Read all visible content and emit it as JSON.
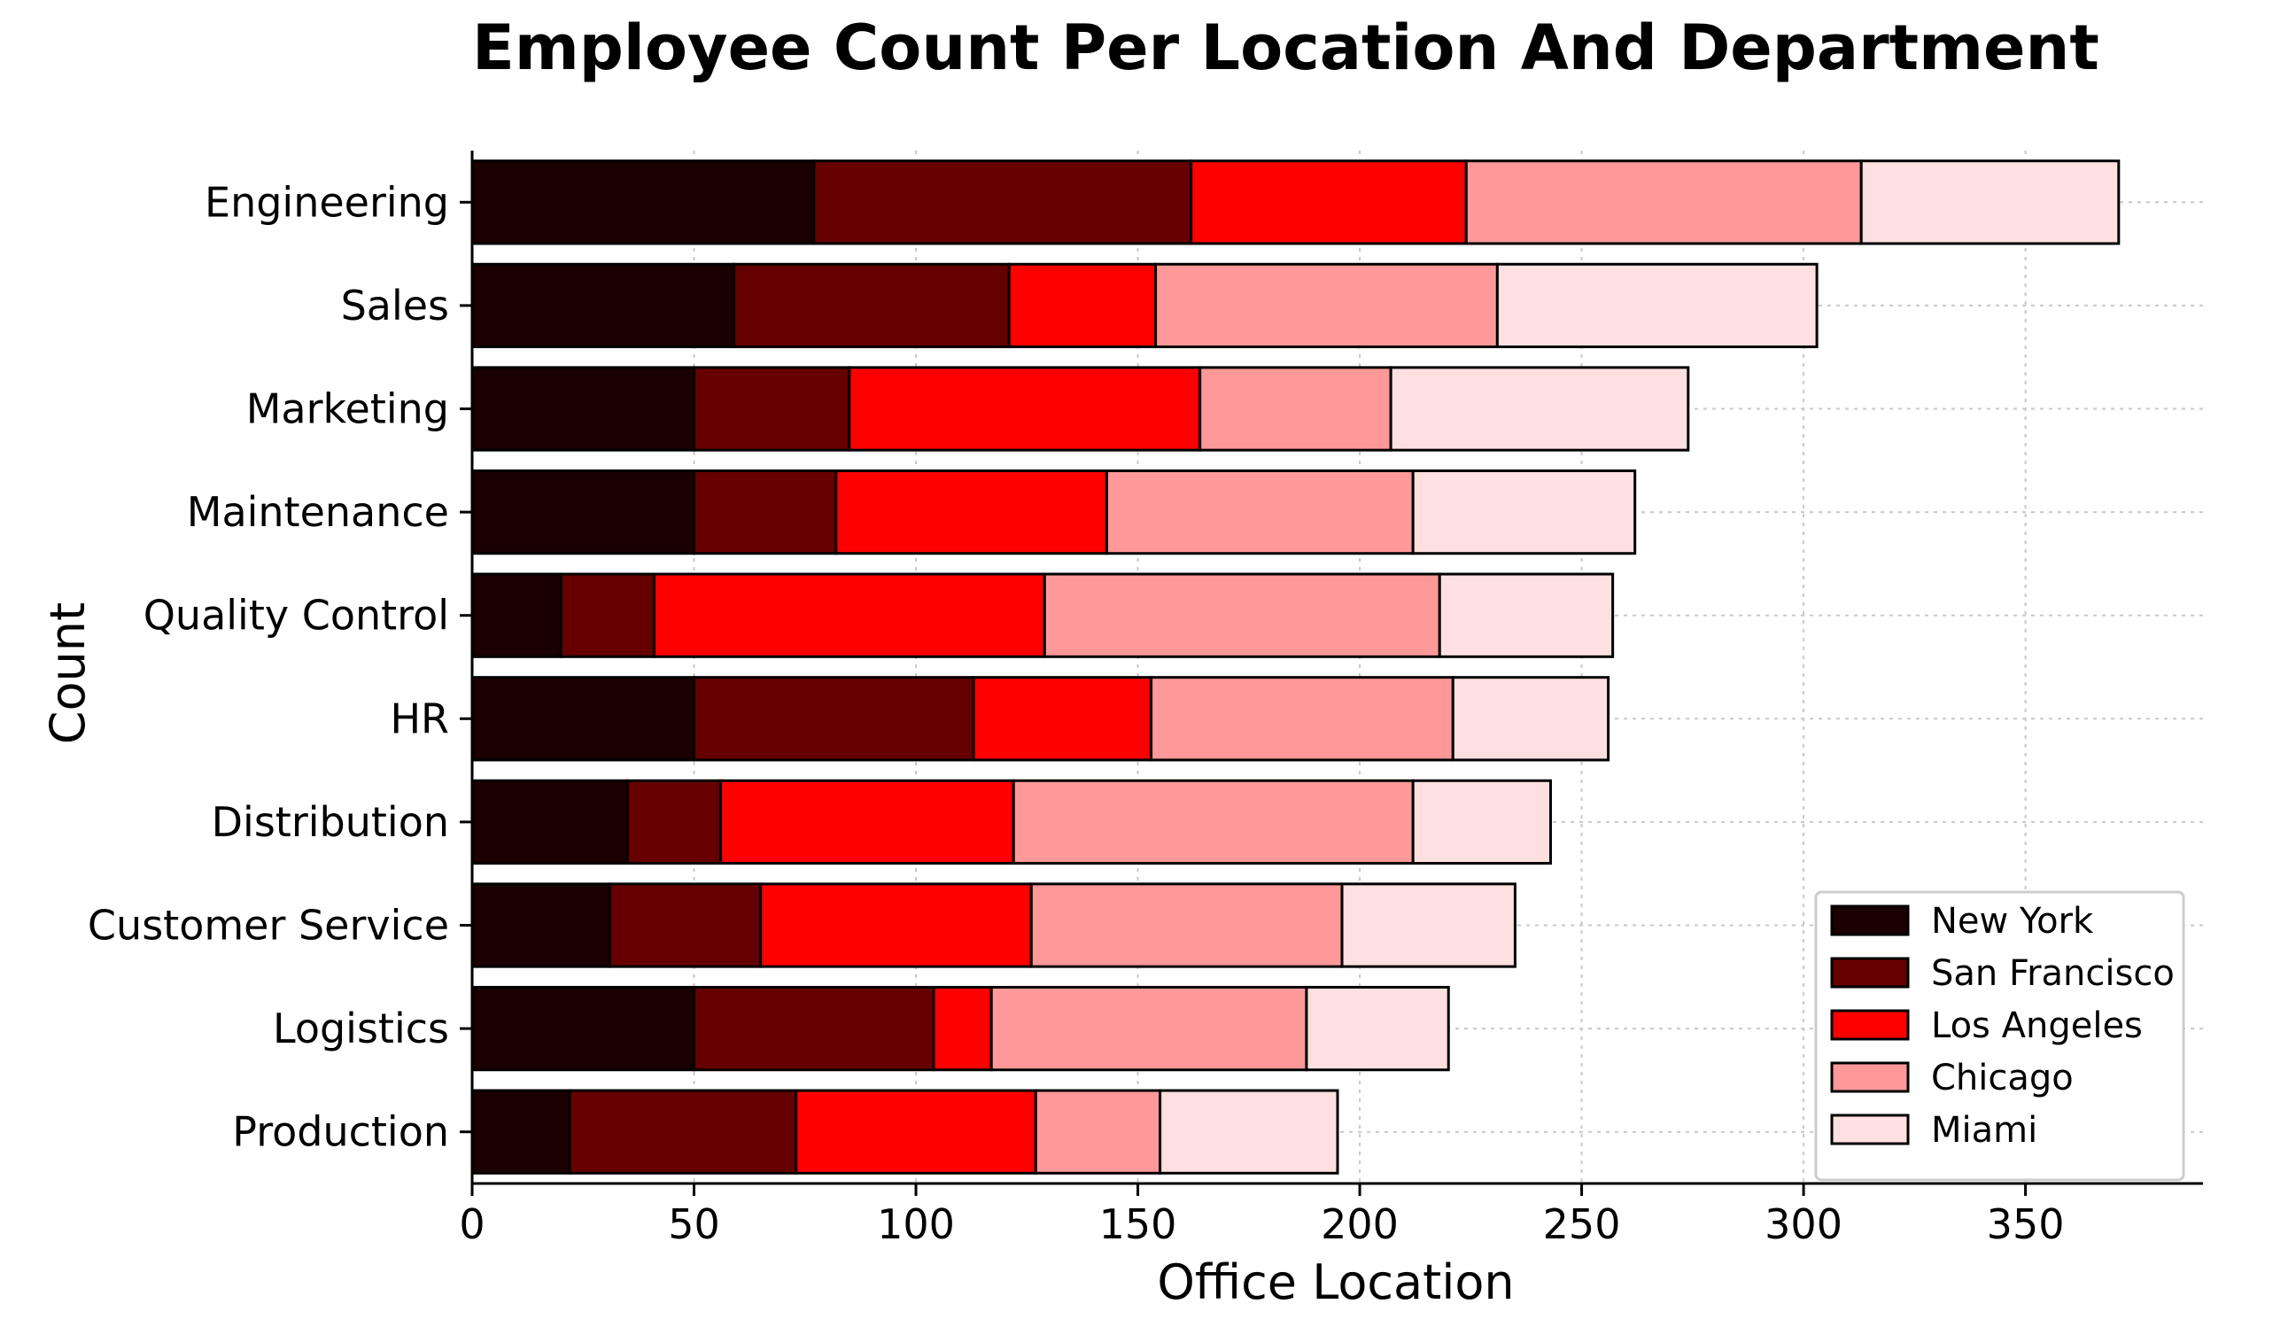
{
  "chart_data": {
    "type": "bar",
    "orientation": "horizontal",
    "stacked": true,
    "title": "Employee Count Per Location And Department",
    "xlabel": "Office Location",
    "ylabel": "Count",
    "xlim": [
      0,
      390
    ],
    "xticks": [
      0,
      50,
      100,
      150,
      200,
      250,
      300,
      350
    ],
    "grid": true,
    "legend_position": "lower-right",
    "categories": [
      "Engineering",
      "Sales",
      "Marketing",
      "Maintenance",
      "Quality Control",
      "HR",
      "Distribution",
      "Customer Service",
      "Logistics",
      "Production"
    ],
    "series": [
      {
        "name": "New York",
        "color": "#1a0000",
        "values": [
          77,
          59,
          50,
          50,
          20,
          50,
          35,
          31,
          50,
          22
        ]
      },
      {
        "name": "San Francisco",
        "color": "#660000",
        "values": [
          85,
          62,
          35,
          32,
          21,
          63,
          21,
          34,
          54,
          51
        ]
      },
      {
        "name": "Los Angeles",
        "color": "#ff0000",
        "values": [
          62,
          33,
          79,
          61,
          88,
          40,
          66,
          61,
          13,
          54
        ]
      },
      {
        "name": "Chicago",
        "color": "#ff9999",
        "values": [
          89,
          77,
          43,
          69,
          89,
          68,
          90,
          70,
          71,
          28
        ]
      },
      {
        "name": "Miami",
        "color": "#ffe0e0",
        "values": [
          58,
          72,
          67,
          50,
          39,
          35,
          31,
          39,
          32,
          40
        ]
      }
    ]
  }
}
